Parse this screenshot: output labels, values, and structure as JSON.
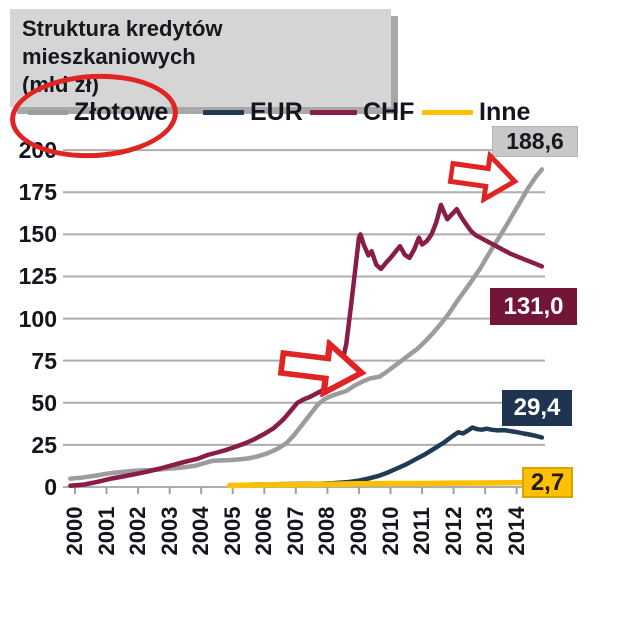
{
  "title": {
    "line1": "Struktura kredytów mieszkaniowych",
    "line2": "(mld zł)"
  },
  "legend": [
    {
      "label": "Złotowe",
      "color": "#9c9c9c"
    },
    {
      "label": "EUR",
      "color": "#1f3a54"
    },
    {
      "label": "CHF",
      "color": "#8a1c49"
    },
    {
      "label": "Inne",
      "color": "#fec000"
    }
  ],
  "annotations": {
    "color": "#e02424",
    "ellipse_around": "Złotowe legend entry",
    "arrow_top_points_at": "end of Złotowe line near 188,6",
    "arrow_middle_points_at": "step on Złotowe line around 2009"
  },
  "end_labels": [
    {
      "series": "Złotowe",
      "text": "188,6",
      "bg": "#c8c8c8",
      "fg": "#17171f"
    },
    {
      "series": "CHF",
      "text": "131,0",
      "bg": "#731537",
      "fg": "#ffffff"
    },
    {
      "series": "EUR",
      "text": "29,4",
      "bg": "#1e3450",
      "fg": "#ffffff"
    },
    {
      "series": "Inne",
      "text": "2,7",
      "bg": "#fec000",
      "fg": "#231a0e"
    }
  ],
  "chart_data": {
    "type": "line",
    "title": "Struktura kredytów mieszkaniowych (mld zł)",
    "xlabel": "",
    "ylabel": "mld zł",
    "ylim": [
      0,
      200
    ],
    "yticks": [
      0,
      25,
      50,
      75,
      100,
      125,
      150,
      175,
      200
    ],
    "xticks": [
      "2000",
      "2001",
      "2002",
      "2003",
      "2004",
      "2005",
      "2006",
      "2007",
      "2008",
      "2009",
      "2010",
      "2011",
      "2012",
      "2013",
      "2014"
    ],
    "grid": true,
    "legend_position": "top",
    "series": [
      {
        "name": "Złotowe",
        "color": "#9c9c9c",
        "width": 4.5,
        "end_value": 188.6,
        "points": [
          [
            1999.85,
            5
          ],
          [
            2000.2,
            5.5
          ],
          [
            2000.5,
            6.3
          ],
          [
            2000.8,
            7.2
          ],
          [
            2001.1,
            8.2
          ],
          [
            2001.4,
            8.8
          ],
          [
            2001.7,
            9.3
          ],
          [
            2002.0,
            9.8
          ],
          [
            2002.3,
            10.0
          ],
          [
            2002.6,
            10.3
          ],
          [
            2002.9,
            10.8
          ],
          [
            2003.2,
            11.2
          ],
          [
            2003.5,
            11.8
          ],
          [
            2003.8,
            12.6
          ],
          [
            2004.1,
            14.2
          ],
          [
            2004.35,
            15.5
          ],
          [
            2004.6,
            15.8
          ],
          [
            2004.9,
            16.0
          ],
          [
            2005.2,
            16.4
          ],
          [
            2005.5,
            17.0
          ],
          [
            2005.8,
            18.2
          ],
          [
            2006.1,
            20.0
          ],
          [
            2006.4,
            22.5
          ],
          [
            2006.7,
            26.0
          ],
          [
            2006.95,
            31.0
          ],
          [
            2007.2,
            37.0
          ],
          [
            2007.45,
            43.0
          ],
          [
            2007.7,
            49.0
          ],
          [
            2007.9,
            52.0
          ],
          [
            2008.1,
            54.0
          ],
          [
            2008.35,
            55.5
          ],
          [
            2008.6,
            57.0
          ],
          [
            2008.85,
            60.0
          ],
          [
            2009.1,
            62.5
          ],
          [
            2009.35,
            64.5
          ],
          [
            2009.5,
            65.0
          ],
          [
            2009.65,
            65.5
          ],
          [
            2009.85,
            68.0
          ],
          [
            2010.1,
            71.5
          ],
          [
            2010.35,
            75.0
          ],
          [
            2010.6,
            78.5
          ],
          [
            2010.85,
            82.0
          ],
          [
            2011.1,
            86.5
          ],
          [
            2011.35,
            91.5
          ],
          [
            2011.6,
            97.0
          ],
          [
            2011.85,
            103.0
          ],
          [
            2012.1,
            110.0
          ],
          [
            2012.35,
            116.5
          ],
          [
            2012.6,
            123.0
          ],
          [
            2012.85,
            130.0
          ],
          [
            2013.1,
            138.0
          ],
          [
            2013.35,
            145.5
          ],
          [
            2013.6,
            153.0
          ],
          [
            2013.85,
            161.0
          ],
          [
            2014.1,
            169.0
          ],
          [
            2014.35,
            177.0
          ],
          [
            2014.6,
            184.0
          ],
          [
            2014.8,
            188.6
          ]
        ]
      },
      {
        "name": "EUR",
        "color": "#1f3a54",
        "width": 4.5,
        "end_value": 29.4,
        "points": [
          [
            2005.3,
            1.2
          ],
          [
            2005.8,
            1.5
          ],
          [
            2006.3,
            1.6
          ],
          [
            2006.8,
            1.8
          ],
          [
            2007.3,
            1.9
          ],
          [
            2007.8,
            2.0
          ],
          [
            2008.2,
            2.3
          ],
          [
            2008.6,
            2.8
          ],
          [
            2009.0,
            3.8
          ],
          [
            2009.3,
            5.0
          ],
          [
            2009.6,
            6.5
          ],
          [
            2009.9,
            8.5
          ],
          [
            2010.2,
            11.0
          ],
          [
            2010.5,
            13.5
          ],
          [
            2010.8,
            16.5
          ],
          [
            2011.1,
            19.5
          ],
          [
            2011.4,
            23.0
          ],
          [
            2011.7,
            26.5
          ],
          [
            2011.95,
            30.0
          ],
          [
            2012.15,
            32.5
          ],
          [
            2012.3,
            31.8
          ],
          [
            2012.45,
            33.5
          ],
          [
            2012.6,
            35.3
          ],
          [
            2012.75,
            34.3
          ],
          [
            2012.9,
            34.0
          ],
          [
            2013.05,
            34.6
          ],
          [
            2013.2,
            34.0
          ],
          [
            2013.4,
            33.6
          ],
          [
            2013.6,
            33.8
          ],
          [
            2013.8,
            33.2
          ],
          [
            2014.0,
            32.6
          ],
          [
            2014.2,
            31.8
          ],
          [
            2014.4,
            31.2
          ],
          [
            2014.6,
            30.4
          ],
          [
            2014.8,
            29.4
          ]
        ]
      },
      {
        "name": "CHF",
        "color": "#8a1c49",
        "width": 4.5,
        "end_value": 131.0,
        "points": [
          [
            1999.85,
            0.8
          ],
          [
            2000.3,
            1.5
          ],
          [
            2000.7,
            3.0
          ],
          [
            2001.1,
            4.8
          ],
          [
            2001.5,
            6.2
          ],
          [
            2001.9,
            7.6
          ],
          [
            2002.3,
            9.2
          ],
          [
            2002.7,
            11.0
          ],
          [
            2003.1,
            13.0
          ],
          [
            2003.5,
            15.0
          ],
          [
            2003.9,
            16.8
          ],
          [
            2004.2,
            19.0
          ],
          [
            2004.5,
            20.5
          ],
          [
            2004.8,
            22.0
          ],
          [
            2005.1,
            24.0
          ],
          [
            2005.4,
            26.0
          ],
          [
            2005.7,
            28.5
          ],
          [
            2006.0,
            31.5
          ],
          [
            2006.3,
            35.0
          ],
          [
            2006.6,
            40.0
          ],
          [
            2006.85,
            45.5
          ],
          [
            2007.05,
            50.0
          ],
          [
            2007.25,
            52.0
          ],
          [
            2007.45,
            53.5
          ],
          [
            2007.65,
            55.5
          ],
          [
            2007.85,
            57.5
          ],
          [
            2008.05,
            60.0
          ],
          [
            2008.25,
            64.0
          ],
          [
            2008.45,
            72.0
          ],
          [
            2008.6,
            85.0
          ],
          [
            2008.75,
            108.0
          ],
          [
            2008.9,
            132.0
          ],
          [
            2009.0,
            148.0
          ],
          [
            2009.05,
            150.0
          ],
          [
            2009.15,
            144.0
          ],
          [
            2009.3,
            137.5
          ],
          [
            2009.4,
            140.0
          ],
          [
            2009.55,
            132.0
          ],
          [
            2009.7,
            129.5
          ],
          [
            2009.85,
            133.0
          ],
          [
            2010.0,
            136.0
          ],
          [
            2010.15,
            139.5
          ],
          [
            2010.3,
            143.0
          ],
          [
            2010.45,
            138.0
          ],
          [
            2010.6,
            136.0
          ],
          [
            2010.75,
            141.0
          ],
          [
            2010.9,
            148.0
          ],
          [
            2011.0,
            144.0
          ],
          [
            2011.15,
            146.0
          ],
          [
            2011.3,
            150.0
          ],
          [
            2011.45,
            157.0
          ],
          [
            2011.6,
            167.5
          ],
          [
            2011.7,
            163.0
          ],
          [
            2011.8,
            159.0
          ],
          [
            2011.95,
            162.0
          ],
          [
            2012.1,
            165.0
          ],
          [
            2012.25,
            160.0
          ],
          [
            2012.4,
            156.0
          ],
          [
            2012.55,
            152.0
          ],
          [
            2012.7,
            149.5
          ],
          [
            2012.85,
            148.0
          ],
          [
            2013.0,
            146.5
          ],
          [
            2013.2,
            144.5
          ],
          [
            2013.4,
            142.5
          ],
          [
            2013.6,
            140.5
          ],
          [
            2013.8,
            138.5
          ],
          [
            2014.0,
            137.0
          ],
          [
            2014.2,
            135.5
          ],
          [
            2014.4,
            134.0
          ],
          [
            2014.6,
            132.5
          ],
          [
            2014.8,
            131.0
          ]
        ]
      },
      {
        "name": "Inne",
        "color": "#fec000",
        "width": 5.5,
        "end_value": 2.7,
        "points": [
          [
            2004.9,
            0.9
          ],
          [
            2005.5,
            1.1
          ],
          [
            2006.2,
            1.3
          ],
          [
            2007.0,
            1.4
          ],
          [
            2008.0,
            1.6
          ],
          [
            2009.0,
            1.9
          ],
          [
            2010.0,
            2.1
          ],
          [
            2011.0,
            2.1
          ],
          [
            2012.0,
            2.3
          ],
          [
            2013.0,
            2.4
          ],
          [
            2014.0,
            2.6
          ],
          [
            2014.8,
            2.7
          ]
        ]
      }
    ]
  }
}
